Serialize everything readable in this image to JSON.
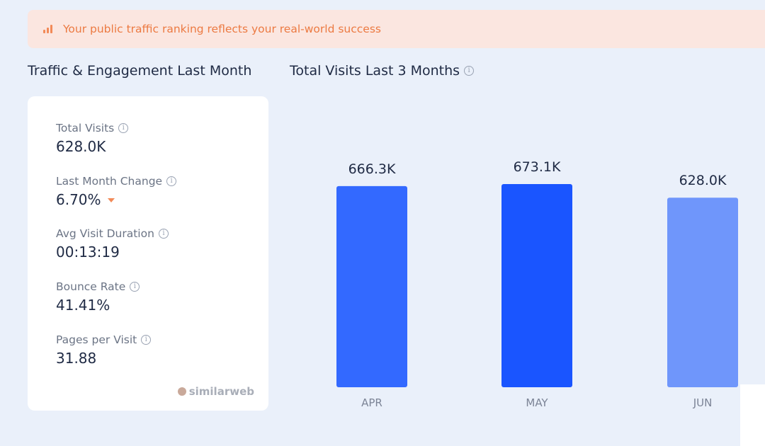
{
  "banner": {
    "text": "Your public traffic ranking reflects your real-world success",
    "icon": "ranking-bars-icon",
    "accent": "#ec7a42"
  },
  "engagement": {
    "title": "Traffic & Engagement Last Month",
    "metrics": [
      {
        "label": "Total Visits",
        "value": "628.0K"
      },
      {
        "label": "Last Month Change",
        "value": "6.70%",
        "trend": "down"
      },
      {
        "label": "Avg Visit Duration",
        "value": "00:13:19"
      },
      {
        "label": "Bounce Rate",
        "value": "41.41%"
      },
      {
        "label": "Pages per Visit",
        "value": "31.88"
      }
    ],
    "brand": "similarweb"
  },
  "visits": {
    "title": "Total Visits Last 3 Months"
  },
  "chart_data": {
    "type": "bar",
    "categories": [
      "APR",
      "MAY",
      "JUN"
    ],
    "values": [
      666.3,
      673.1,
      628.0
    ],
    "labels": [
      "666.3K",
      "673.1K",
      "628.0K"
    ],
    "unit": "K",
    "colors": [
      "#3369ff",
      "#1a55ff",
      "#6f96fb"
    ],
    "title": "",
    "xlabel": "",
    "ylabel": ""
  }
}
